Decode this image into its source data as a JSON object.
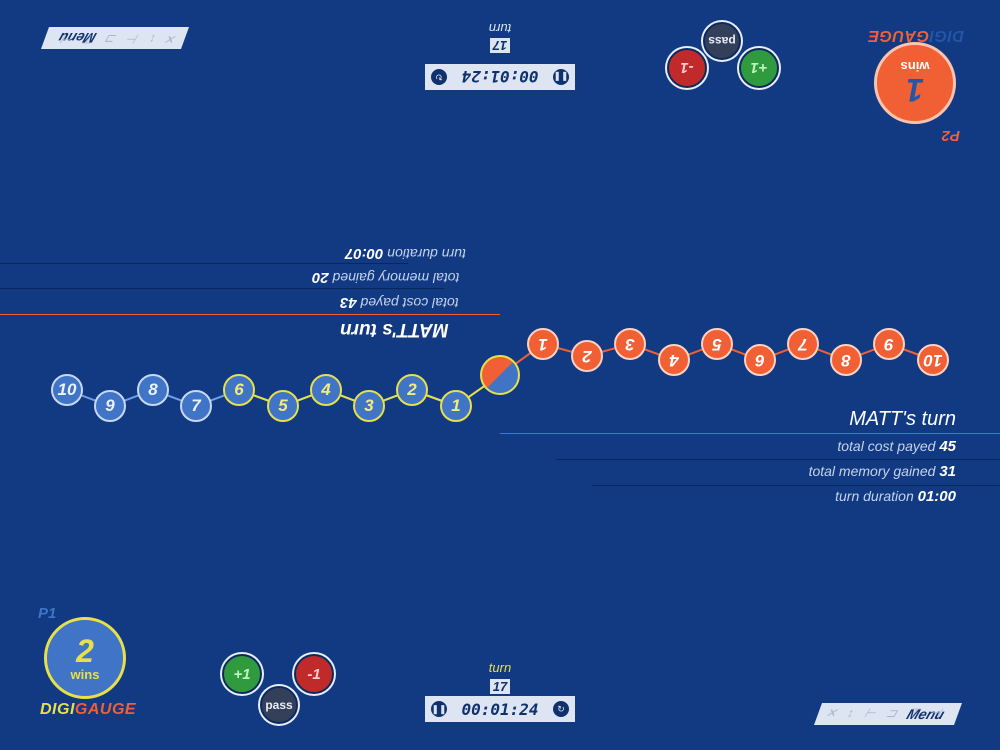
{
  "p1": {
    "label": "P1",
    "wins_count": "2",
    "wins_label": "wins",
    "logo_digi": "DIGI",
    "logo_gauge": "GAUGE",
    "menu_label": "Menu",
    "menu_symbols": "✕ ↕ ⊢ ⊐ ⊤ ⊣",
    "turn_label": "turn",
    "turn_number": "17",
    "timer": "00:01:24",
    "plus_label": "+1",
    "minus_label": "-1",
    "pass_label": "pass",
    "stats": {
      "heading": "MATT's turn",
      "cost_label": "total cost payed",
      "cost_value": "45",
      "memory_label": "total memory gained",
      "memory_value": "31",
      "duration_label": "turn duration",
      "duration_value": "01:00"
    }
  },
  "p2": {
    "label": "P2",
    "wins_count": "1",
    "wins_label": "wins",
    "logo_digi": "DIGI",
    "logo_gauge": "GAUGE",
    "menu_label": "Menu",
    "menu_symbols": "✕ ↕ ⊢ ⊐ ⊤ ⊣",
    "turn_label": "turn",
    "turn_number": "17",
    "timer": "00:01:24",
    "plus_label": "+1",
    "minus_label": "-1",
    "pass_label": "pass",
    "stats": {
      "heading": "MATT's turn",
      "cost_label": "total cost payed",
      "cost_value": "43",
      "memory_label": "total memory gained",
      "memory_value": "20",
      "duration_label": "turn duration",
      "duration_value": "00:07"
    }
  },
  "gauge": {
    "blue_nodes": [
      "10",
      "9",
      "8",
      "7",
      "6",
      "5",
      "4",
      "3",
      "2",
      "1"
    ],
    "orange_nodes": [
      "1",
      "2",
      "3",
      "4",
      "5",
      "6",
      "7",
      "8",
      "9",
      "10"
    ],
    "highlighted_blue": [
      "6",
      "5",
      "4",
      "3",
      "2",
      "1"
    ],
    "center_marker": "0"
  },
  "colors": {
    "background": "#113a82",
    "p1_accent": "#e7e04a",
    "p2_accent": "#f06034",
    "node_blue": "#3f74c6",
    "plus_green": "#2f9a3e",
    "minus_red": "#c02a2a",
    "pass_gray": "#34405a"
  }
}
